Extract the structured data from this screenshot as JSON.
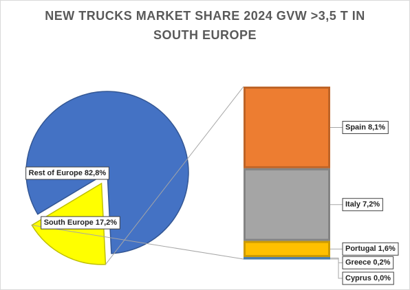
{
  "chart_data": {
    "type": "pie",
    "title_lines": [
      "NEW TRUCKS MARKET SHARE 2024 GVW >3,5 T IN",
      "SOUTH EUROPE"
    ],
    "pie": {
      "slices": [
        {
          "name": "Rest of Europe",
          "value": 82.8,
          "label": "Rest of Europe 82,8%",
          "color": "#4472C4"
        },
        {
          "name": "South Europe",
          "value": 17.2,
          "label": "South Europe 17,2%",
          "color": "#FFFF00"
        }
      ]
    },
    "bar": {
      "segments": [
        {
          "name": "Spain",
          "value": 8.1,
          "label": "Spain 8,1%",
          "color": "#ED7D31"
        },
        {
          "name": "Italy",
          "value": 7.2,
          "label": "Italy 7,2%",
          "color": "#A5A5A5"
        },
        {
          "name": "Portugal",
          "value": 1.6,
          "label": "Portugal 1,6%",
          "color": "#FFC000"
        },
        {
          "name": "Greece",
          "value": 0.2,
          "label": "Greece 0,2%",
          "color": "#5B9BD5"
        },
        {
          "name": "Cyprus",
          "value": 0.0,
          "label": "Cyprus 0,0%",
          "color": "#70AD47"
        }
      ]
    }
  }
}
